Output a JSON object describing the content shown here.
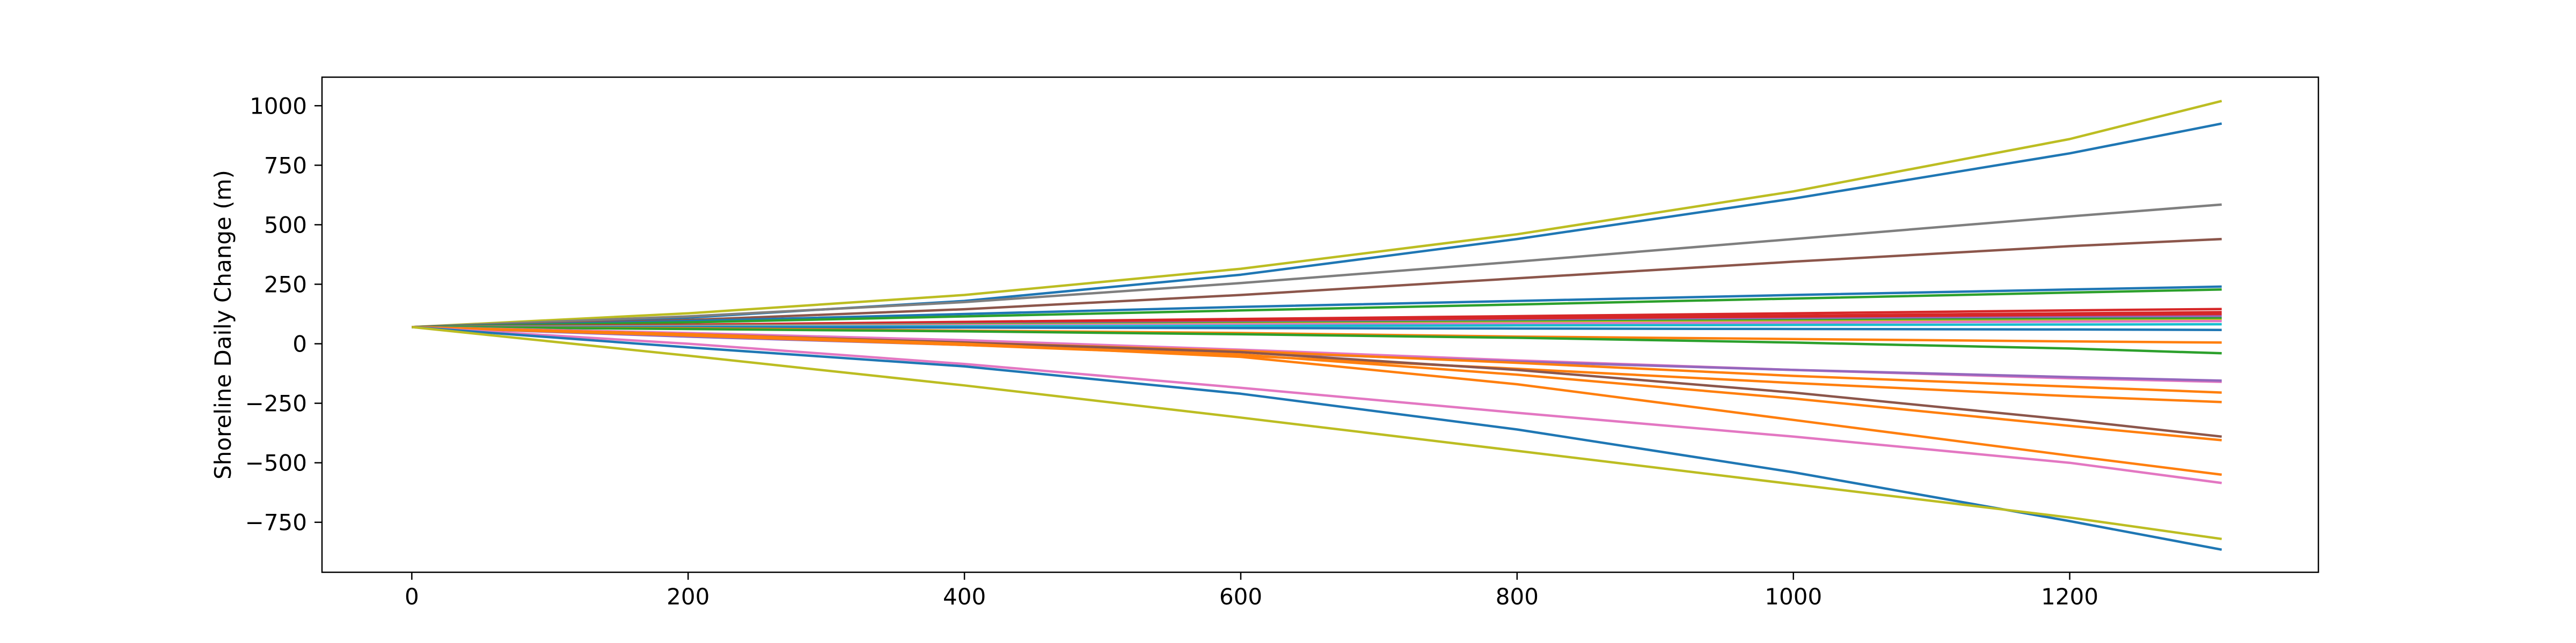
{
  "chart_data": {
    "type": "line",
    "title": "",
    "xlabel": "",
    "ylabel": "Shoreline Daily Change (m)",
    "xlim": [
      -65,
      1380
    ],
    "ylim": [
      -960,
      1120
    ],
    "x_ticks": [
      0,
      200,
      400,
      600,
      800,
      1000,
      1200
    ],
    "y_ticks": [
      1000,
      750,
      500,
      250,
      0,
      -250,
      -500,
      -750
    ],
    "x_tick_labels": [
      "0",
      "200",
      "400",
      "600",
      "800",
      "1000",
      "1200"
    ],
    "y_tick_labels": [
      "1000",
      "750",
      "500",
      "250",
      "0",
      "−250",
      "−500",
      "−750"
    ],
    "grid": false,
    "legend": "none",
    "x": [
      0,
      200,
      400,
      600,
      800,
      1000,
      1200,
      1310
    ],
    "series": [
      {
        "color": "#bcbd22",
        "values": [
          70,
          128,
          205,
          315,
          460,
          640,
          860,
          1020
        ]
      },
      {
        "color": "#1f77b4",
        "values": [
          70,
          110,
          180,
          290,
          440,
          610,
          800,
          925
        ]
      },
      {
        "color": "#7f7f7f",
        "values": [
          70,
          115,
          175,
          255,
          345,
          440,
          535,
          585
        ]
      },
      {
        "color": "#8c564b",
        "values": [
          70,
          100,
          145,
          205,
          275,
          345,
          410,
          440
        ]
      },
      {
        "color": "#1f77b4",
        "values": [
          70,
          95,
          125,
          155,
          180,
          205,
          228,
          240
        ]
      },
      {
        "color": "#2ca02c",
        "values": [
          70,
          90,
          115,
          140,
          165,
          190,
          215,
          228
        ]
      },
      {
        "color": "#d62728",
        "values": [
          70,
          80,
          92,
          104,
          116,
          128,
          140,
          146
        ]
      },
      {
        "color": "#d62728",
        "values": [
          70,
          78,
          88,
          98,
          108,
          118,
          128,
          133
        ]
      },
      {
        "color": "#d62728",
        "values": [
          70,
          77,
          85,
          93,
          101,
          110,
          119,
          124
        ]
      },
      {
        "color": "#9467bd",
        "values": [
          70,
          76,
          83,
          90,
          97,
          104,
          111,
          115
        ]
      },
      {
        "color": "#2ca02c",
        "values": [
          70,
          75,
          81,
          87,
          93,
          99,
          104,
          107
        ]
      },
      {
        "color": "#bcbd22",
        "values": [
          70,
          74,
          79,
          84,
          89,
          94,
          98,
          100
        ]
      },
      {
        "color": "#e377c2",
        "values": [
          70,
          73,
          77,
          81,
          85,
          89,
          93,
          95
        ]
      },
      {
        "color": "#17becf",
        "values": [
          70,
          71,
          73,
          75,
          77,
          79,
          81,
          82
        ]
      },
      {
        "color": "#1f77b4",
        "values": [
          70,
          69,
          68,
          66,
          64,
          62,
          60,
          58
        ]
      },
      {
        "color": "#ff7f0e",
        "values": [
          70,
          65,
          55,
          45,
          30,
          20,
          10,
          5
        ]
      },
      {
        "color": "#2ca02c",
        "values": [
          70,
          62,
          52,
          40,
          25,
          5,
          -20,
          -40
        ]
      },
      {
        "color": "#e377c2",
        "values": [
          70,
          45,
          15,
          -25,
          -70,
          -110,
          -145,
          -160
        ]
      },
      {
        "color": "#9467bd",
        "values": [
          70,
          30,
          -5,
          -35,
          -75,
          -110,
          -140,
          -155
        ]
      },
      {
        "color": "#ff7f0e",
        "values": [
          70,
          40,
          5,
          -30,
          -80,
          -135,
          -180,
          -205
        ]
      },
      {
        "color": "#ff7f0e",
        "values": [
          70,
          35,
          -5,
          -50,
          -105,
          -165,
          -220,
          -245
        ]
      },
      {
        "color": "#8c564b",
        "values": [
          70,
          40,
          5,
          -35,
          -110,
          -205,
          -320,
          -390
        ]
      },
      {
        "color": "#ff7f0e",
        "values": [
          70,
          35,
          -5,
          -45,
          -130,
          -230,
          -345,
          -405
        ]
      },
      {
        "color": "#ff7f0e",
        "values": [
          70,
          40,
          0,
          -55,
          -170,
          -320,
          -470,
          -550
        ]
      },
      {
        "color": "#e377c2",
        "values": [
          70,
          0,
          -85,
          -185,
          -290,
          -390,
          -500,
          -585
        ]
      },
      {
        "color": "#1f77b4",
        "values": [
          70,
          -15,
          -95,
          -210,
          -360,
          -540,
          -745,
          -865
        ]
      },
      {
        "color": "#bcbd22",
        "values": [
          70,
          -50,
          -175,
          -310,
          -450,
          -590,
          -730,
          -820
        ]
      }
    ]
  }
}
